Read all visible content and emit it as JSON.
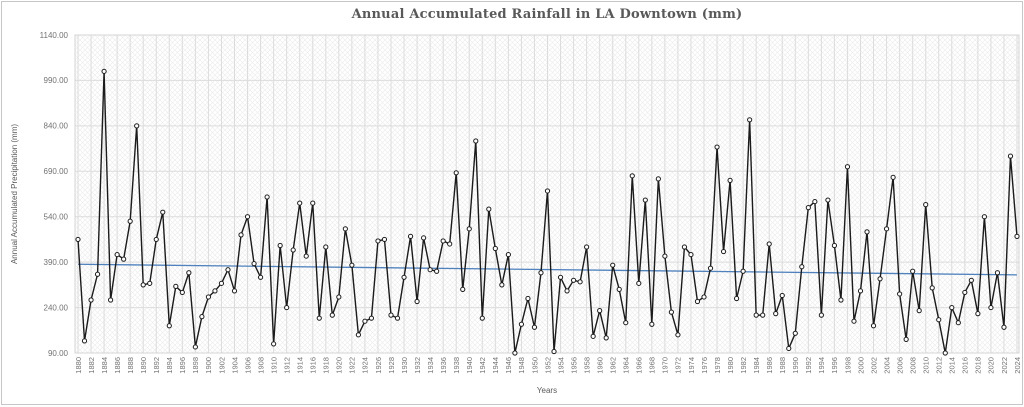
{
  "chart_data": {
    "type": "line",
    "title": "Annual Accumulated Rainfall in LA Downtown (mm)",
    "xlabel": "Years",
    "ylabel": "Annual Accumulated Precipitation (mm)",
    "x_start": 1880,
    "x_end": 2024,
    "x_tick_step": 2,
    "x_tick_labels": [
      "1880",
      "1882",
      "1884",
      "1886",
      "1888",
      "1890",
      "1892",
      "1894",
      "1896",
      "1898",
      "1900",
      "1902",
      "1904",
      "1906",
      "1908",
      "1910",
      "1912",
      "1914",
      "1916",
      "1918",
      "1920",
      "1922",
      "1924",
      "1926",
      "1928",
      "1930",
      "1932",
      "1934",
      "1936",
      "1938",
      "1940",
      "1942",
      "1944",
      "1946",
      "1948",
      "1950",
      "1952",
      "1954",
      "1956",
      "1958",
      "1960",
      "1962",
      "1964",
      "1966",
      "1968",
      "1970",
      "1972",
      "1974",
      "1976",
      "1978",
      "1980",
      "1982",
      "1984",
      "1986",
      "1988",
      "1990",
      "1992",
      "1994",
      "1996",
      "1998",
      "2000",
      "2002",
      "2004",
      "2006",
      "2008",
      "2010",
      "2012",
      "2014",
      "2016",
      "2018",
      "2020",
      "2022",
      "2024"
    ],
    "y_tick_labels": [
      "90.00",
      "240.00",
      "390.00",
      "540.00",
      "690.00",
      "840.00",
      "990.00",
      "1140.00"
    ],
    "ylim": [
      90,
      1140
    ],
    "grid": "both",
    "legend": "none",
    "series": [
      {
        "name": "Annual Accumulated Rainfall",
        "color": "#1b1b1b",
        "marker": "open-circle",
        "values": [
          465,
          130,
          265,
          350,
          1020,
          265,
          415,
          400,
          525,
          840,
          315,
          320,
          465,
          555,
          180,
          310,
          290,
          355,
          110,
          210,
          275,
          295,
          320,
          365,
          295,
          480,
          540,
          385,
          340,
          605,
          120,
          445,
          240,
          430,
          585,
          410,
          585,
          205,
          440,
          215,
          275,
          500,
          380,
          150,
          195,
          205,
          460,
          465,
          215,
          205,
          340,
          475,
          260,
          470,
          365,
          360,
          460,
          450,
          685,
          300,
          500,
          790,
          205,
          565,
          435,
          315,
          415,
          90,
          185,
          270,
          175,
          355,
          625,
          95,
          340,
          295,
          330,
          325,
          440,
          145,
          230,
          140,
          380,
          300,
          190,
          675,
          320,
          595,
          185,
          665,
          410,
          225,
          150,
          440,
          415,
          260,
          275,
          370,
          770,
          425,
          660,
          270,
          360,
          860,
          215,
          215,
          450,
          220,
          280,
          105,
          155,
          375,
          570,
          590,
          215,
          595,
          445,
          265,
          705,
          195,
          295,
          490,
          180,
          335,
          500,
          670,
          285,
          135,
          360,
          230,
          580,
          305,
          200,
          90,
          240,
          190,
          290,
          330,
          220,
          540,
          240,
          355,
          175,
          740,
          475
        ]
      }
    ],
    "trend_line": {
      "color": "#4f81bd",
      "start_value": 383,
      "end_value": 348
    }
  },
  "style": {
    "series_line_color": "#1b1b1b",
    "marker_fill_color": "#ffffff",
    "trend_line_color": "#4f81bd",
    "gridline_color": "#dcdcdc",
    "hatch_color": "#ebebeb",
    "frame_border_color": "#c6c6c6",
    "title_color": "#595959",
    "tick_label_color": "#737373"
  }
}
